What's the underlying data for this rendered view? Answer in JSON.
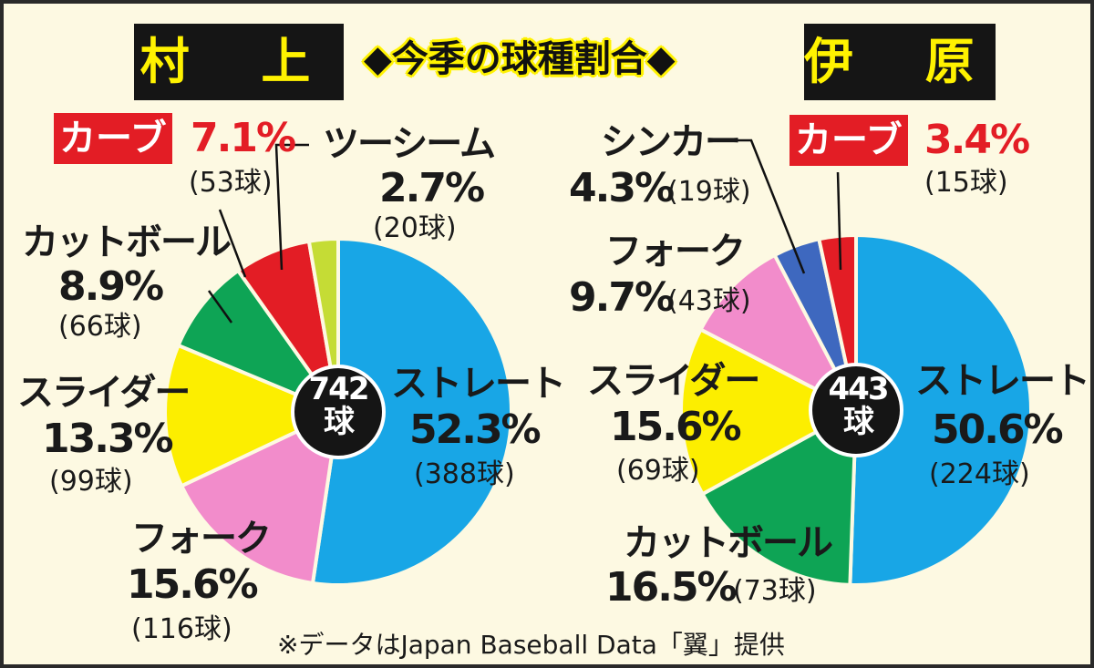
{
  "title": "◆今季の球種割合◆",
  "source": "※データはJapan Baseball Data「翼」提供",
  "chart_data": [
    {
      "type": "pie",
      "player": "村 上",
      "total": "742",
      "total_unit": "球",
      "start": "12 o'clock, clockwise",
      "slices": [
        {
          "label": "ストレート",
          "percent": 52.3,
          "count_text": "(388球)",
          "pct_text": "52.3%",
          "color": "#18a6e6"
        },
        {
          "label": "フォーク",
          "percent": 15.6,
          "count_text": "(116球)",
          "pct_text": "15.6%",
          "color": "#f28ccb"
        },
        {
          "label": "スライダー",
          "percent": 13.3,
          "count_text": "(99球)",
          "pct_text": "13.3%",
          "color": "#fcee00"
        },
        {
          "label": "カットボール",
          "percent": 8.9,
          "count_text": "(66球)",
          "pct_text": "8.9%",
          "color": "#0ea455"
        },
        {
          "label": "カーブ",
          "percent": 7.1,
          "count_text": "(53球)",
          "pct_text": "7.1%",
          "color": "#e31d25"
        },
        {
          "label": "ツーシーム",
          "percent": 2.7,
          "count_text": "(20球)",
          "pct_text": "2.7%",
          "color": "#c5dc35"
        }
      ]
    },
    {
      "type": "pie",
      "player": "伊 原",
      "total": "443",
      "total_unit": "球",
      "start": "12 o'clock, clockwise",
      "slices": [
        {
          "label": "ストレート",
          "percent": 50.6,
          "count_text": "(224球)",
          "pct_text": "50.6%",
          "color": "#18a6e6"
        },
        {
          "label": "カットボール",
          "percent": 16.5,
          "count_text": "(73球)",
          "pct_text": "16.5%",
          "color": "#0ea455"
        },
        {
          "label": "スライダー",
          "percent": 15.6,
          "count_text": "(69球)",
          "pct_text": "15.6%",
          "color": "#fcee00"
        },
        {
          "label": "フォーク",
          "percent": 9.7,
          "count_text": "(43球)",
          "pct_text": "9.7%",
          "color": "#f28ccb"
        },
        {
          "label": "シンカー",
          "percent": 4.3,
          "count_text": "(19球)",
          "pct_text": "4.3%",
          "color": "#3e68bf"
        },
        {
          "label": "カーブ",
          "percent": 3.4,
          "count_text": "(15球)",
          "pct_text": "3.4%",
          "color": "#e31d25"
        }
      ]
    }
  ]
}
